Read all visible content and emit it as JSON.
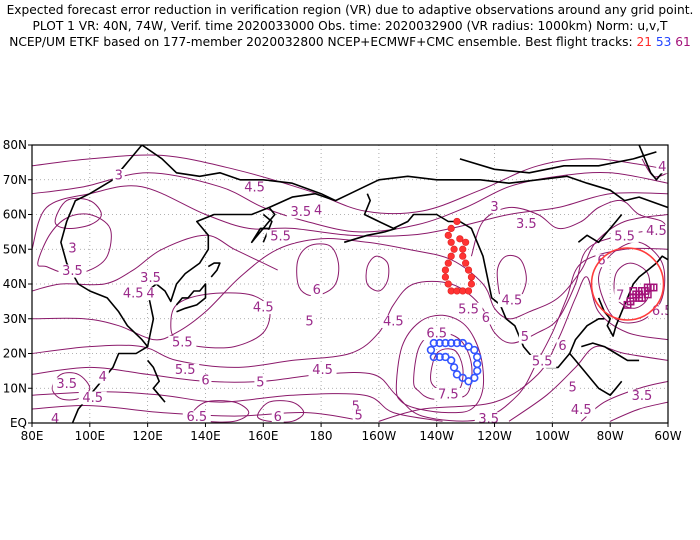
{
  "header": {
    "line1": "Expected forecast error reduction in verification region (VR) due to adaptive observations around any grid point.",
    "line2": "PLOT 1 VR: 40N, 74W, Verif. time 2020033000 Obs. time: 2020032900 (VR radius: 1000km) Norm: u,v,T",
    "line3_prefix": "NCEP/UM ETKF based on 177-member 2020032800 NCEP+ECMWF+CMC ensemble. Best flight tracks:",
    "track_a": "21",
    "track_b": "53",
    "track_c": "61"
  },
  "axes": {
    "lat_labels": [
      "80N",
      "70N",
      "60N",
      "50N",
      "40N",
      "30N",
      "20N",
      "10N",
      "EQ"
    ],
    "lon_labels": [
      "80E",
      "100E",
      "120E",
      "140E",
      "160E",
      "180",
      "160W",
      "140W",
      "120W",
      "100W",
      "80W",
      "60W"
    ]
  },
  "contour_labels": [
    {
      "t": "3",
      "lon": 110,
      "lat": 70.5
    },
    {
      "t": "4.5",
      "lon": 157,
      "lat": 67
    },
    {
      "t": "3.5",
      "lon": 173,
      "lat": 60
    },
    {
      "t": "4",
      "lon": 179,
      "lat": 60.5
    },
    {
      "t": "3",
      "lon": 94,
      "lat": 49.5
    },
    {
      "t": "3.5",
      "lon": 94,
      "lat": 43
    },
    {
      "t": "3.5",
      "lon": 121,
      "lat": 41
    },
    {
      "t": "4.5",
      "lon": 115,
      "lat": 36.5
    },
    {
      "t": "4",
      "lon": 121,
      "lat": 36.5
    },
    {
      "t": "5.5",
      "lon": 166,
      "lat": 53
    },
    {
      "t": "6",
      "lon": 178.5,
      "lat": 37.5
    },
    {
      "t": "4.5",
      "lon": 160,
      "lat": 32.5
    },
    {
      "t": "5",
      "lon": 176,
      "lat": 28.5
    },
    {
      "t": "5.5",
      "lon": 132,
      "lat": 22.5
    },
    {
      "t": "5.5",
      "lon": 133,
      "lat": 14.5
    },
    {
      "t": "6",
      "lon": 140,
      "lat": 11.5
    },
    {
      "t": "5",
      "lon": 159,
      "lat": 11
    },
    {
      "t": "4.5",
      "lon": 180.5,
      "lat": 14.5
    },
    {
      "t": "3.5",
      "lon": 92,
      "lat": 10.5
    },
    {
      "t": "4",
      "lon": 104.5,
      "lat": 12.5
    },
    {
      "t": "4.5",
      "lon": 101,
      "lat": 6.5
    },
    {
      "t": "6.5",
      "lon": 137,
      "lat": 1
    },
    {
      "t": "6",
      "lon": 165,
      "lat": 1
    },
    {
      "t": "4",
      "lon": 88,
      "lat": 0.5
    },
    {
      "t": "5",
      "lon": 192,
      "lat": 4
    },
    {
      "t": "4.5",
      "lon": 205,
      "lat": 28.5
    },
    {
      "t": "6.5",
      "lon": 220,
      "lat": 25
    },
    {
      "t": "7.5",
      "lon": 224,
      "lat": 7.5
    },
    {
      "t": "5.5",
      "lon": 231,
      "lat": 32
    },
    {
      "t": "6",
      "lon": 237,
      "lat": 29.5
    },
    {
      "t": "4.5",
      "lon": 246,
      "lat": 34.5
    },
    {
      "t": "5",
      "lon": 250.5,
      "lat": 24
    },
    {
      "t": "5.5",
      "lon": 256.5,
      "lat": 17
    },
    {
      "t": "6",
      "lon": 263.5,
      "lat": 21.5
    },
    {
      "t": "5",
      "lon": 267,
      "lat": 9.5
    },
    {
      "t": "3.5",
      "lon": 291,
      "lat": 7
    },
    {
      "t": "4.5",
      "lon": 270,
      "lat": 3
    },
    {
      "t": "3.5",
      "lon": 238,
      "lat": 0.5
    },
    {
      "t": "5",
      "lon": 193,
      "lat": 1.5
    },
    {
      "t": "5.5",
      "lon": 285,
      "lat": 53
    },
    {
      "t": "4.5",
      "lon": 296,
      "lat": 54.5
    },
    {
      "t": "6",
      "lon": 277,
      "lat": 46
    },
    {
      "t": "7",
      "lon": 283.5,
      "lat": 36
    },
    {
      "t": "6.5",
      "lon": 298,
      "lat": 31.5
    },
    {
      "t": "3",
      "lon": 240,
      "lat": 61.5
    },
    {
      "t": "3.5",
      "lon": 251,
      "lat": 56.5
    },
    {
      "t": "4",
      "lon": 298,
      "lat": 73
    }
  ],
  "tracks": {
    "red": [
      [
        227,
        58
      ],
      [
        225,
        56
      ],
      [
        224,
        54
      ],
      [
        225,
        52
      ],
      [
        226,
        50
      ],
      [
        225,
        48
      ],
      [
        224,
        46
      ],
      [
        223,
        44
      ],
      [
        223,
        42
      ],
      [
        224,
        40
      ],
      [
        225,
        38
      ],
      [
        227,
        38
      ],
      [
        229,
        38
      ],
      [
        231,
        38
      ],
      [
        232,
        40
      ],
      [
        232,
        42
      ],
      [
        231,
        44
      ],
      [
        230,
        46
      ],
      [
        229,
        48
      ],
      [
        229,
        50
      ],
      [
        230,
        52
      ],
      [
        228,
        53
      ]
    ],
    "blue": [
      [
        221,
        23
      ],
      [
        223,
        23
      ],
      [
        225,
        23
      ],
      [
        227,
        23
      ],
      [
        229,
        23
      ],
      [
        231,
        22
      ],
      [
        233,
        21
      ],
      [
        234,
        19
      ],
      [
        234,
        17
      ],
      [
        234,
        15
      ],
      [
        233,
        13
      ],
      [
        231,
        12
      ],
      [
        229,
        13
      ],
      [
        227,
        14
      ],
      [
        226,
        16
      ],
      [
        225,
        18
      ],
      [
        223,
        19
      ],
      [
        221,
        19
      ],
      [
        219,
        19
      ],
      [
        218,
        21
      ],
      [
        219,
        23
      ]
    ],
    "purple": [
      [
        286,
        34
      ],
      [
        287,
        35
      ],
      [
        288,
        36
      ],
      [
        289,
        37
      ],
      [
        290,
        37
      ],
      [
        291,
        38
      ],
      [
        292,
        38
      ],
      [
        293,
        39
      ],
      [
        294,
        39
      ],
      [
        295,
        39
      ],
      [
        290,
        36
      ],
      [
        287,
        35
      ],
      [
        291,
        36
      ],
      [
        293,
        37
      ],
      [
        288,
        38
      ]
    ]
  },
  "vr_circle": {
    "lon": 286,
    "lat": 40,
    "radius_label": "1000km"
  }
}
